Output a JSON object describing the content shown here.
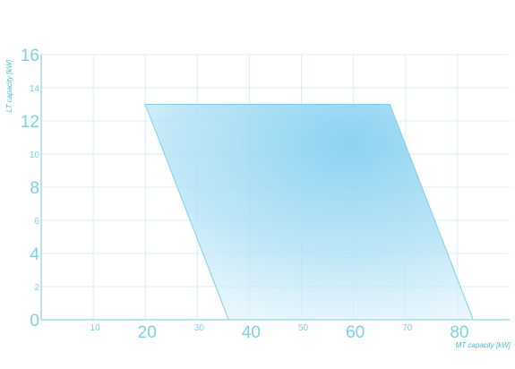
{
  "chart_data": {
    "type": "area",
    "title": "",
    "xlabel": "MT capacity [kW]",
    "ylabel": "LT capacity [kW]",
    "xlim": [
      0,
      90
    ],
    "ylim": [
      0,
      16
    ],
    "grid": true,
    "x_ticks_major": [
      20,
      40,
      60,
      80
    ],
    "x_ticks_minor": [
      10,
      30,
      50,
      70
    ],
    "y_ticks_major": [
      0,
      4,
      8,
      12,
      16
    ],
    "y_ticks_minor": [
      2,
      6,
      10,
      14
    ],
    "series": [
      {
        "shape": "polygon",
        "points": [
          {
            "x": 20,
            "y": 13
          },
          {
            "x": 67,
            "y": 13
          },
          {
            "x": 83,
            "y": 0
          },
          {
            "x": 36,
            "y": 0
          }
        ],
        "fill_color": "#8fd6f1"
      }
    ],
    "colors": {
      "axis": "#8fd3e6",
      "grid": "#dcecf2",
      "tick_text": "#7fd0e4",
      "title_text": "#4fb8d6"
    }
  }
}
